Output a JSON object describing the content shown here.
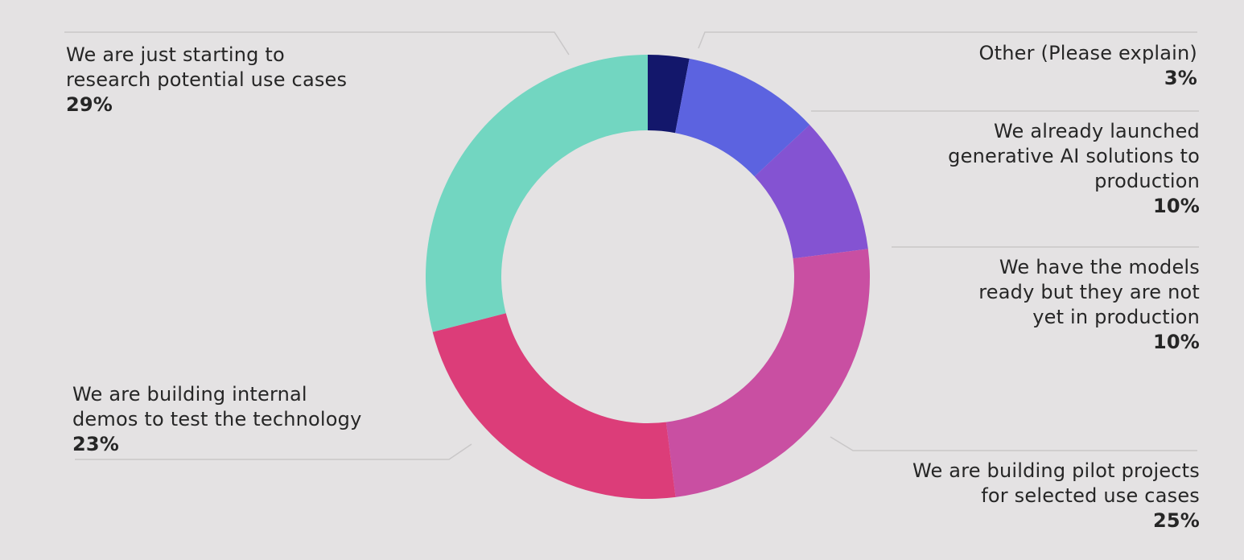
{
  "chart_data": {
    "type": "pie",
    "donut": true,
    "start_angle_degrees_from_top": 0,
    "direction": "clockwise",
    "slices": [
      {
        "label": "Other (Please explain)",
        "value": 3,
        "value_label": "3%",
        "color": "#13176b"
      },
      {
        "label": "We already launched generative AI solutions to production",
        "value": 10,
        "value_label": "10%",
        "color": "#5c63e0"
      },
      {
        "label": "We have the models ready but they are not yet in production",
        "value": 10,
        "value_label": "10%",
        "color": "#8453d2"
      },
      {
        "label": "We are building pilot projects for selected use cases",
        "value": 25,
        "value_label": "25%",
        "color": "#c94fa2"
      },
      {
        "label": "We are building internal demos to test the technology",
        "value": 23,
        "value_label": "23%",
        "color": "#dc3d79"
      },
      {
        "label": "We are just starting to research potential use cases",
        "value": 29,
        "value_label": "29%",
        "color": "#72d6c1"
      }
    ],
    "label_lines": [
      "Other (Please explain)",
      "We already launched\ngenerative AI solutions to\nproduction",
      "We have the models\nready but they are not\nyet in production",
      "We are building pilot projects\nfor selected use cases",
      "We are building internal\ndemos to test the technology",
      "We are just starting to\nresearch potential use cases"
    ],
    "leader_line_color": "#c9c7c8",
    "background": "#e4e2e3"
  }
}
